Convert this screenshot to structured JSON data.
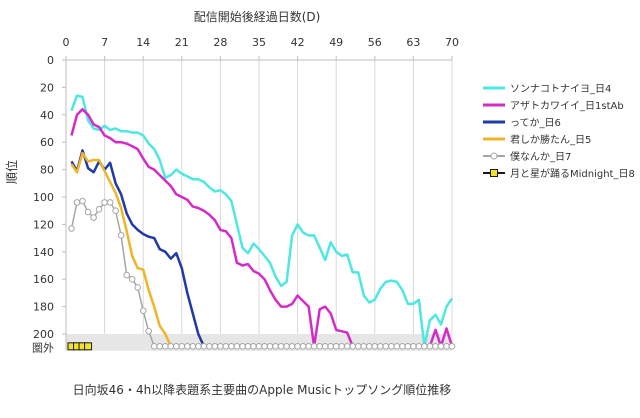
{
  "chart_data": {
    "type": "line",
    "xlabel": "配信開始後経過日数(D)",
    "ylabel": "順位",
    "caption": "日向坂46・4h以降表題系主要曲のApple Musicトップソング順位推移",
    "xlim": [
      0,
      70
    ],
    "ylim": [
      0,
      200
    ],
    "y_reversed": true,
    "x_ticks": [
      0,
      7,
      14,
      21,
      28,
      35,
      42,
      49,
      56,
      63,
      70
    ],
    "y_ticks": [
      0,
      20,
      40,
      60,
      80,
      100,
      120,
      140,
      160,
      180,
      200
    ],
    "out_label": "圏外",
    "out_value": 210,
    "legend_position": "right",
    "series": [
      {
        "name": "ソンナコトナイヨ_日4",
        "color": "#4de8e0",
        "x": [
          1,
          2,
          3,
          4,
          5,
          6,
          7,
          8,
          9,
          10,
          11,
          12,
          13,
          14,
          15,
          16,
          17,
          18,
          19,
          20,
          21,
          22,
          23,
          24,
          25,
          26,
          27,
          28,
          29,
          30,
          31,
          32,
          33,
          34,
          35,
          36,
          37,
          38,
          39,
          40,
          41,
          42,
          43,
          44,
          45,
          46,
          47,
          48,
          49,
          50,
          51,
          52,
          53,
          54,
          55,
          56,
          57,
          58,
          59,
          60,
          61,
          62,
          63,
          64,
          65,
          66,
          67,
          68,
          69,
          70
        ],
        "y": [
          37,
          26,
          27,
          44,
          50,
          51,
          48,
          51,
          50,
          52,
          52,
          53,
          53,
          55,
          61,
          65,
          73,
          86,
          84,
          80,
          83,
          85,
          87,
          87,
          89,
          93,
          96,
          95,
          98,
          103,
          120,
          137,
          141,
          134,
          138,
          143,
          148,
          158,
          165,
          162,
          128,
          120,
          126,
          128,
          128,
          137,
          146,
          133,
          140,
          143,
          142,
          155,
          155,
          172,
          177,
          175,
          167,
          162,
          161,
          162,
          168,
          178,
          178,
          175,
          209,
          190,
          186,
          193,
          180,
          174
        ]
      },
      {
        "name": "アザトカワイイ_日1stAb",
        "color": "#d42bc8",
        "x": [
          1,
          2,
          3,
          4,
          5,
          6,
          7,
          8,
          9,
          10,
          11,
          12,
          13,
          14,
          15,
          16,
          17,
          18,
          19,
          20,
          21,
          22,
          23,
          24,
          25,
          26,
          27,
          28,
          29,
          30,
          31,
          32,
          33,
          34,
          35,
          36,
          37,
          38,
          39,
          40,
          41,
          42,
          43,
          44,
          45,
          46,
          47,
          48,
          49,
          50,
          51,
          52,
          53,
          54,
          55,
          56,
          57,
          58,
          59,
          60,
          61,
          62,
          63,
          64,
          65,
          66,
          67,
          68,
          69,
          70
        ],
        "y": [
          55,
          40,
          36,
          40,
          47,
          49,
          55,
          57,
          60,
          60,
          61,
          63,
          65,
          72,
          78,
          80,
          84,
          88,
          92,
          98,
          100,
          102,
          107,
          108,
          110,
          113,
          117,
          124,
          125,
          130,
          148,
          150,
          149,
          154,
          156,
          160,
          168,
          175,
          180,
          180,
          178,
          172,
          176,
          180,
          209,
          182,
          180,
          185,
          197,
          198,
          199,
          209,
          209,
          209,
          209,
          209,
          209,
          209,
          209,
          209,
          209,
          209,
          209,
          209,
          209,
          209,
          197,
          209,
          196,
          209
        ]
      },
      {
        "name": "ってか_日6",
        "color": "#1f3aa6",
        "x": [
          1,
          2,
          3,
          4,
          5,
          6,
          7,
          8,
          9,
          10,
          11,
          12,
          13,
          14,
          15,
          16,
          17,
          18,
          19,
          20,
          21,
          22,
          23,
          24,
          25
        ],
        "y": [
          74,
          81,
          66,
          79,
          82,
          74,
          80,
          75,
          90,
          98,
          112,
          120,
          124,
          127,
          129,
          130,
          138,
          140,
          145,
          141,
          152,
          170,
          185,
          200,
          209
        ]
      },
      {
        "name": "君しか勝たん_日5",
        "color": "#f0b427",
        "x": [
          1,
          2,
          3,
          4,
          5,
          6,
          7,
          8,
          9,
          10,
          11,
          12,
          13,
          14,
          15,
          16,
          17,
          18,
          19,
          20
        ],
        "y": [
          76,
          82,
          68,
          74,
          73,
          73,
          81,
          89,
          97,
          108,
          125,
          143,
          152,
          153,
          168,
          180,
          194,
          200,
          209,
          209
        ]
      },
      {
        "name": "僕なんか_日7",
        "color": "#a6a6a6",
        "marker": "circle",
        "x": [
          1,
          2,
          3,
          4,
          5,
          6,
          7,
          8,
          9,
          10,
          11,
          12,
          13,
          14,
          15,
          16,
          17,
          18,
          19,
          20,
          21,
          22,
          23,
          24,
          25,
          26,
          27,
          28,
          29,
          30,
          31,
          32,
          33,
          34,
          35,
          36,
          37,
          38,
          39,
          40,
          41,
          42,
          43,
          44,
          45,
          46,
          47,
          48,
          49,
          50,
          51,
          52,
          53,
          54,
          55,
          56,
          57,
          58,
          59,
          60,
          61,
          62,
          63,
          64,
          65,
          66,
          67,
          68,
          69,
          70
        ],
        "y": [
          123,
          104,
          103,
          111,
          115,
          109,
          104,
          104,
          110,
          128,
          157,
          160,
          166,
          183,
          198,
          209,
          209,
          209,
          209,
          209,
          209,
          209,
          209,
          209,
          209,
          209,
          209,
          209,
          209,
          209,
          209,
          209,
          209,
          209,
          209,
          209,
          209,
          209,
          209,
          209,
          209,
          209,
          209,
          209,
          209,
          209,
          209,
          209,
          209,
          209,
          209,
          209,
          209,
          209,
          209,
          209,
          209,
          209,
          209,
          209,
          209,
          209,
          209,
          209,
          209,
          209,
          209,
          209,
          209,
          209
        ]
      },
      {
        "name": "月と星が踊るMidnight_日8",
        "color": "#1a1a1a",
        "marker": "square",
        "marker_fill": "#f2e22a",
        "x": [
          1,
          2,
          3,
          4
        ],
        "y": [
          209,
          209,
          209,
          209
        ]
      }
    ]
  }
}
